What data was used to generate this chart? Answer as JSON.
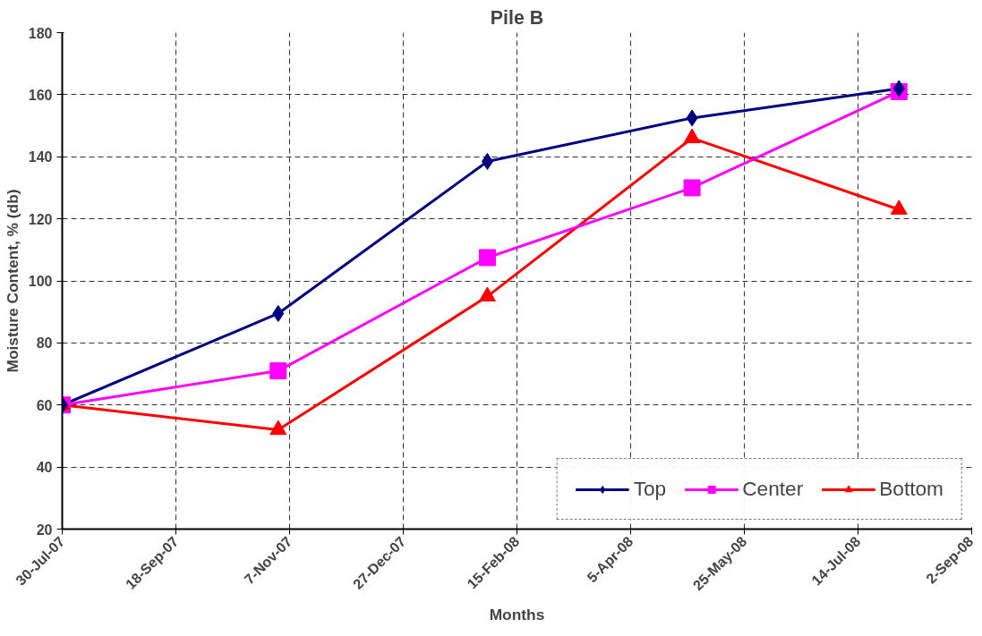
{
  "chart_data": {
    "type": "line",
    "title": "Pile B",
    "xlabel": "Months",
    "ylabel": "Moisture Content, % (db)",
    "x": [
      "2007-07-30",
      "2007-11-02",
      "2008-02-02",
      "2008-05-02",
      "2008-08-01"
    ],
    "series": [
      {
        "name": "Top",
        "color": "#000080",
        "marker": "diamond",
        "values": [
          60,
          89.5,
          138.5,
          152.5,
          162
        ]
      },
      {
        "name": "Center",
        "color": "#ff00ff",
        "marker": "square",
        "values": [
          60,
          71,
          107.5,
          130,
          161
        ]
      },
      {
        "name": "Bottom",
        "color": "#ff0000",
        "marker": "triangle",
        "values": [
          60,
          52,
          95,
          146,
          123
        ]
      }
    ],
    "xlim": [
      "2007-07-30",
      "2008-09-02"
    ],
    "xticks": [
      {
        "value": "2007-07-30",
        "label": "30-Jul-07"
      },
      {
        "value": "2007-09-18",
        "label": "18-Sep-07"
      },
      {
        "value": "2007-11-07",
        "label": "7-Nov-07"
      },
      {
        "value": "2007-12-27",
        "label": "27-Dec-07"
      },
      {
        "value": "2008-02-15",
        "label": "15-Feb-08"
      },
      {
        "value": "2008-04-05",
        "label": "5-Apr-08"
      },
      {
        "value": "2008-05-25",
        "label": "25-May-08"
      },
      {
        "value": "2008-07-14",
        "label": "14-Jul-08"
      },
      {
        "value": "2008-09-02",
        "label": "2-Sep-08"
      }
    ],
    "ylim": [
      20,
      180
    ],
    "yticks": [
      20,
      40,
      60,
      80,
      100,
      120,
      140,
      160,
      180
    ],
    "grid": true,
    "legend": "bottom right",
    "line_style": "solid"
  }
}
